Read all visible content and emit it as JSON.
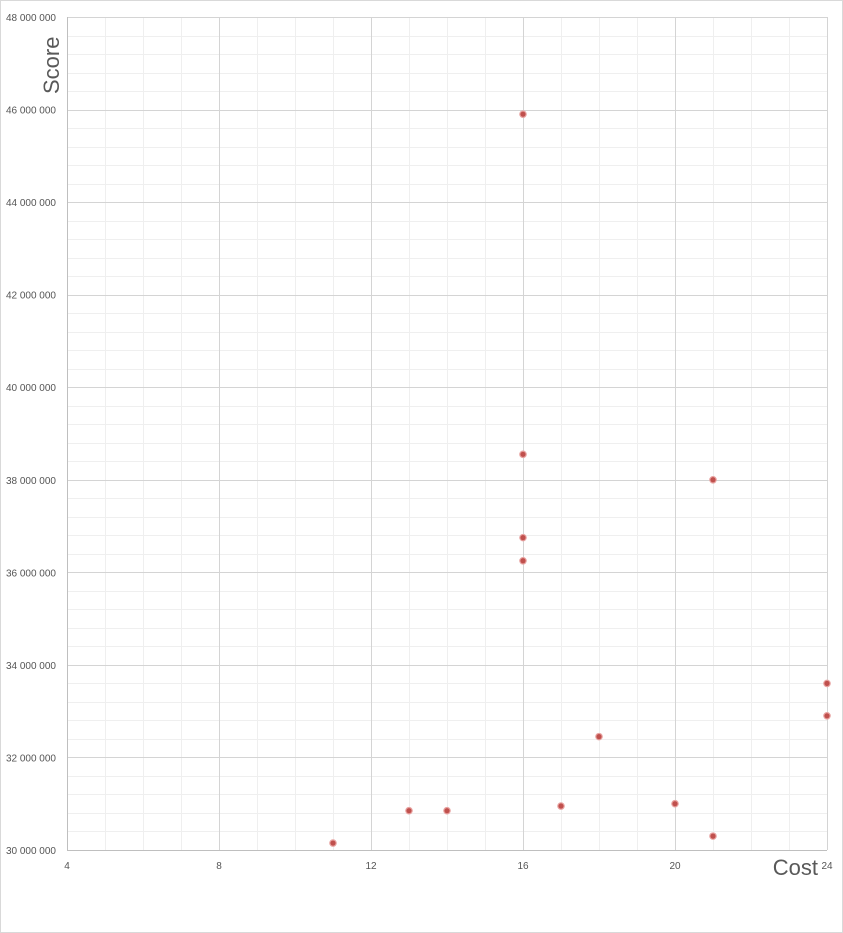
{
  "chart_data": {
    "type": "scatter",
    "title": "",
    "xlabel": "Cost",
    "ylabel": "Score",
    "xlim": [
      4,
      24
    ],
    "ylim": [
      30000000,
      48000000
    ],
    "x_major_step": 4,
    "x_minor_step": 1,
    "y_major_step": 2000000,
    "y_minor_step": 400000,
    "x_tick_labels": [
      "4",
      "8",
      "12",
      "16",
      "20",
      "24"
    ],
    "y_tick_labels": [
      "30 000 000",
      "32 000 000",
      "34 000 000",
      "36 000 000",
      "38 000 000",
      "40 000 000",
      "42 000 000",
      "44 000 000",
      "46 000 000",
      "48 000 000"
    ],
    "grid": true,
    "legend": "none",
    "marker_color": "#c0504d",
    "marker_edge_color": "#e8a3a1",
    "points": [
      {
        "x": 11,
        "y": 30150000
      },
      {
        "x": 13,
        "y": 30850000
      },
      {
        "x": 14,
        "y": 30850000
      },
      {
        "x": 16,
        "y": 45900000
      },
      {
        "x": 16,
        "y": 38550000
      },
      {
        "x": 16,
        "y": 36750000
      },
      {
        "x": 16,
        "y": 36250000
      },
      {
        "x": 17,
        "y": 30950000
      },
      {
        "x": 18,
        "y": 32450000
      },
      {
        "x": 20,
        "y": 31000000
      },
      {
        "x": 21,
        "y": 38000000
      },
      {
        "x": 21,
        "y": 30300000
      },
      {
        "x": 24,
        "y": 33600000
      },
      {
        "x": 24,
        "y": 32900000
      }
    ]
  }
}
